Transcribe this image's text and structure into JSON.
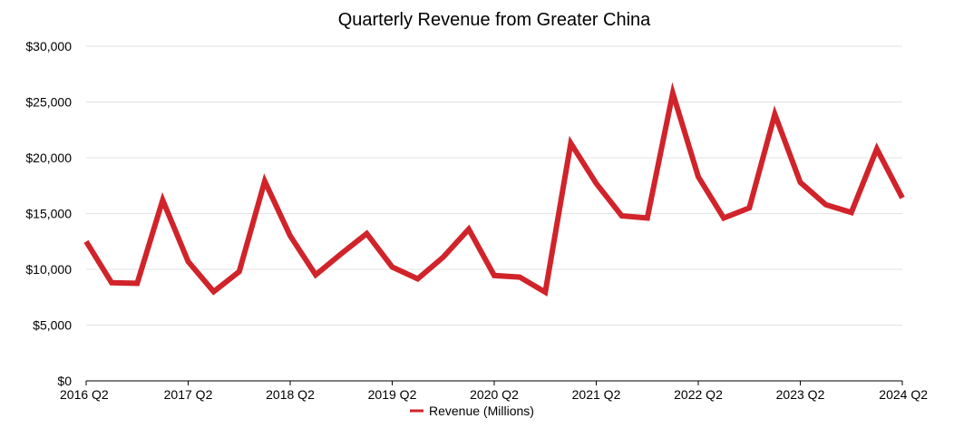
{
  "chart_data": {
    "type": "line",
    "title": "Quarterly Revenue from Greater China",
    "xlabel": "",
    "ylabel": "",
    "x": [
      "2016 Q2",
      "2016 Q3",
      "2016 Q4",
      "2017 Q1",
      "2017 Q2",
      "2017 Q3",
      "2017 Q4",
      "2018 Q1",
      "2018 Q2",
      "2018 Q3",
      "2018 Q4",
      "2019 Q1",
      "2019 Q2",
      "2019 Q3",
      "2019 Q4",
      "2020 Q1",
      "2020 Q2",
      "2020 Q3",
      "2020 Q4",
      "2021 Q1",
      "2021 Q2",
      "2021 Q3",
      "2021 Q4",
      "2022 Q1",
      "2022 Q2",
      "2022 Q3",
      "2022 Q4",
      "2023 Q1",
      "2023 Q2",
      "2023 Q3",
      "2023 Q4",
      "2024 Q1",
      "2024 Q2"
    ],
    "x_tick_labels": [
      "2016 Q2",
      "2017 Q2",
      "2018 Q2",
      "2019 Q2",
      "2020 Q2",
      "2021 Q2",
      "2022 Q2",
      "2023 Q2",
      "2024 Q2"
    ],
    "series": [
      {
        "name": "Revenue (Millions)",
        "color": "#d1232a",
        "values": [
          12500,
          8800,
          8750,
          16200,
          10700,
          8000,
          9800,
          17900,
          13000,
          9500,
          11400,
          13200,
          10200,
          9150,
          11100,
          13600,
          9450,
          9300,
          7950,
          21300,
          17700,
          14800,
          14600,
          25800,
          18300,
          14600,
          15500,
          23900,
          17800,
          15800,
          15100,
          20800,
          16400
        ]
      }
    ],
    "y_ticks": [
      0,
      5000,
      10000,
      15000,
      20000,
      25000,
      30000
    ],
    "y_tick_labels": [
      "$0",
      "$5,000",
      "$10,000",
      "$15,000",
      "$20,000",
      "$25,000",
      "$30,000"
    ],
    "ylim": [
      0,
      30000
    ],
    "grid": true,
    "legend_position": "bottom"
  }
}
